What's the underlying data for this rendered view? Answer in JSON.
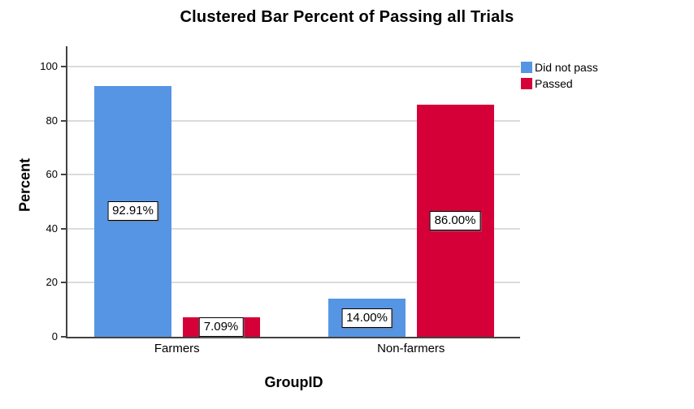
{
  "chart_data": {
    "type": "bar",
    "title": "Clustered Bar Percent of Passing all Trials",
    "xlabel": "GroupID",
    "ylabel": "Percent",
    "categories": [
      "Farmers",
      "Non-farmers"
    ],
    "series": [
      {
        "name": "Did not pass",
        "color": "#5695E3",
        "values": [
          92.91,
          14.0
        ],
        "labels": [
          "92.91%",
          "14.00%"
        ]
      },
      {
        "name": "Passed",
        "color": "#D50038",
        "values": [
          7.09,
          86.0
        ],
        "labels": [
          "7.09%",
          "86.00%"
        ]
      }
    ],
    "yticks": [
      0,
      20,
      40,
      60,
      80,
      100
    ],
    "ylim": [
      0,
      107
    ],
    "grid": true,
    "legend_position": "top-right",
    "colors": {
      "gridline": "#DBDBDB",
      "axis": "#424242",
      "label_box_bg": "#FFFFFF",
      "label_box_border": "#000000"
    }
  }
}
